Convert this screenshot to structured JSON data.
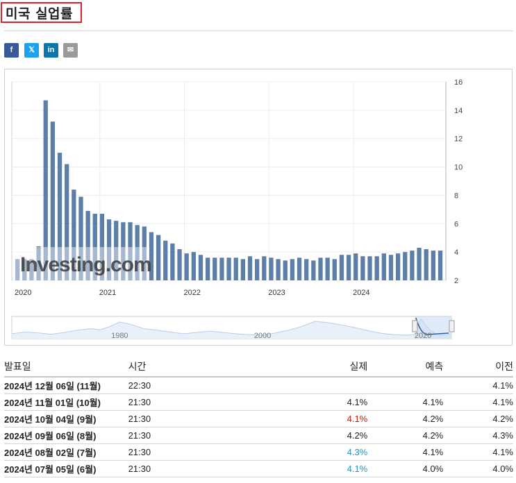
{
  "title": "미국 실업률",
  "share": {
    "facebook": "f",
    "twitter": "𝕏",
    "linkedin": "in",
    "email": "✉"
  },
  "chart_data": {
    "type": "bar",
    "y_ticks": [
      "16",
      "14",
      "12",
      "10",
      "8",
      "6",
      "4",
      "2"
    ],
    "ylim": [
      2,
      16
    ],
    "x_ticks": [
      "2020",
      "2021",
      "2022",
      "2023",
      "2024"
    ],
    "values": [
      3.5,
      3.5,
      3.5,
      4.4,
      14.7,
      13.2,
      11.0,
      10.2,
      8.4,
      7.9,
      6.9,
      6.7,
      6.7,
      6.3,
      6.2,
      6.1,
      6.1,
      5.9,
      5.8,
      5.4,
      5.2,
      4.8,
      4.6,
      4.2,
      3.9,
      4.0,
      3.8,
      3.6,
      3.6,
      3.6,
      3.6,
      3.6,
      3.5,
      3.7,
      3.5,
      3.7,
      3.6,
      3.5,
      3.4,
      3.5,
      3.6,
      3.5,
      3.4,
      3.6,
      3.6,
      3.5,
      3.8,
      3.8,
      3.9,
      3.7,
      3.7,
      3.7,
      3.9,
      3.8,
      3.9,
      4.0,
      4.1,
      4.3,
      4.2,
      4.1,
      4.1
    ],
    "bar_color": "#5b7fa8",
    "watermark": "Investing.com",
    "navigator_ticks": [
      "1980",
      "2000",
      "2020"
    ]
  },
  "table": {
    "headers": [
      "발표일",
      "시간",
      "실제",
      "예측",
      "이전"
    ],
    "rows": [
      {
        "date": "2024년 12월 06일 (11월)",
        "time": "22:30",
        "actual": "",
        "forecast": "",
        "previous": "4.1%",
        "actual_color": ""
      },
      {
        "date": "2024년 11월 01일 (10월)",
        "time": "21:30",
        "actual": "4.1%",
        "forecast": "4.1%",
        "previous": "4.1%",
        "actual_color": ""
      },
      {
        "date": "2024년 10월 04일 (9월)",
        "time": "21:30",
        "actual": "4.1%",
        "forecast": "4.2%",
        "previous": "4.2%",
        "actual_color": "red"
      },
      {
        "date": "2024년 09월 06일 (8월)",
        "time": "21:30",
        "actual": "4.2%",
        "forecast": "4.2%",
        "previous": "4.3%",
        "actual_color": ""
      },
      {
        "date": "2024년 08월 02일 (7월)",
        "time": "21:30",
        "actual": "4.3%",
        "forecast": "4.1%",
        "previous": "4.1%",
        "actual_color": "blue"
      },
      {
        "date": "2024년 07월 05일 (6월)",
        "time": "21:30",
        "actual": "4.1%",
        "forecast": "4.0%",
        "previous": "4.0%",
        "actual_color": "blue"
      }
    ]
  }
}
